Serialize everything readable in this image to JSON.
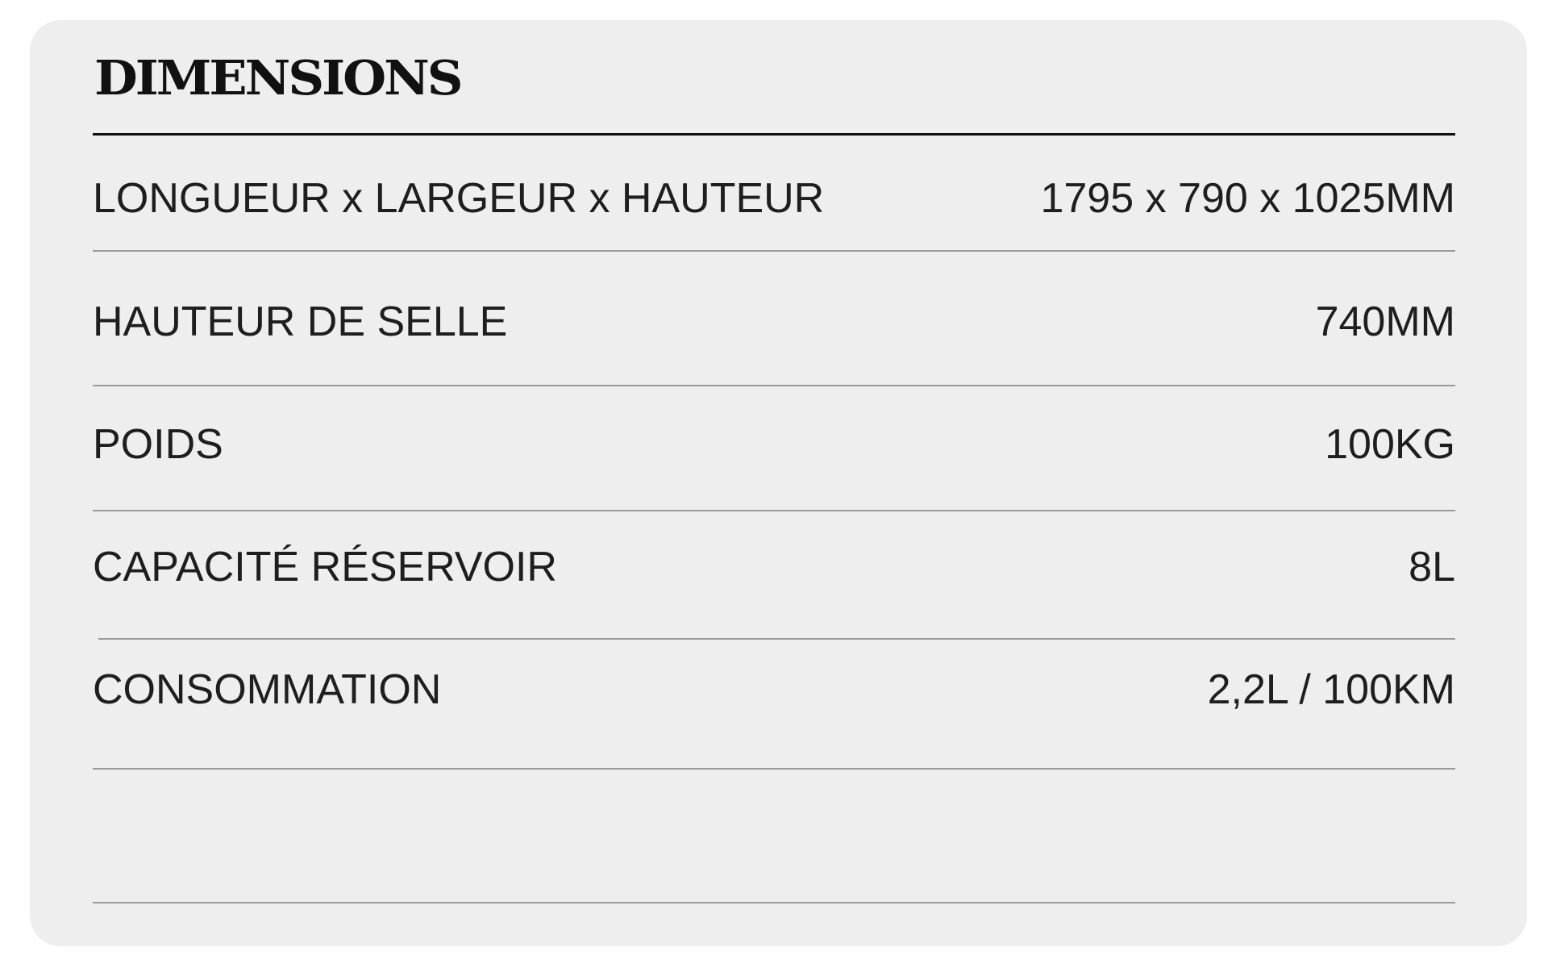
{
  "title": "DIMENSIONS",
  "rows": [
    {
      "label": "LONGUEUR x LARGEUR x HAUTEUR",
      "value": "1795 x 790 x 1025MM"
    },
    {
      "label": "HAUTEUR DE SELLE",
      "value": "740MM"
    },
    {
      "label": "POIDS",
      "value": "100KG"
    },
    {
      "label": "CAPACITÉ RÉSERVOIR",
      "value": "8L"
    },
    {
      "label": "CONSOMMATION",
      "value": "2,2L / 100KM"
    }
  ],
  "colors": {
    "card_background": "#eeeeee",
    "text": "#1e1e1e",
    "rule": "#111111",
    "separator": "#9a9a9a"
  }
}
